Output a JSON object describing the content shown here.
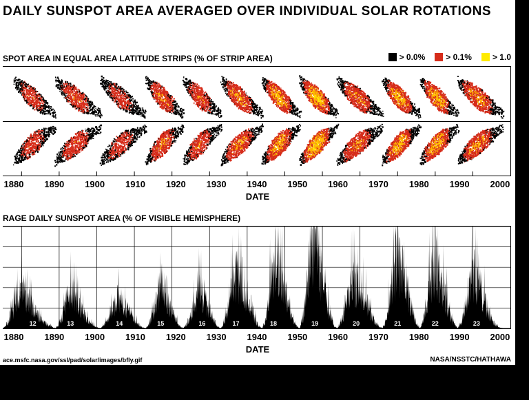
{
  "title": "DAILY SUNSPOT AREA AVERAGED OVER INDIVIDUAL SOLAR ROTATIONS",
  "title_fontsize": 19,
  "subtitle_top": "SPOT AREA IN EQUAL AREA LATITUDE STRIPS (% OF STRIP AREA)",
  "subtitle_bot": "RAGE DAILY SUNSPOT AREA (% OF VISIBLE HEMISPHERE)",
  "subtitle_fontsize": 12,
  "xlabel": "DATE",
  "xlabel_fontsize": 13,
  "tick_fontsize": 13,
  "credit_left": "ace.msfc.nasa.gov/ssl/pad/solar/images/bfly.gif",
  "credit_right": "NASA/NSSTC/HATHAWA",
  "legend": {
    "fontsize": 12,
    "items": [
      {
        "color": "#000000",
        "label": "> 0.0%"
      },
      {
        "color": "#d62c1a",
        "label": "> 0.1%"
      },
      {
        "color": "#ffeb00",
        "label": "> 1.0"
      }
    ]
  },
  "background_color": "#ffffff",
  "page_background": "#000000",
  "grid_color": "#000000",
  "x_axis": {
    "min": 1875,
    "max": 2010,
    "ticks": [
      1880,
      1890,
      1900,
      1910,
      1920,
      1930,
      1940,
      1950,
      1960,
      1970,
      1980,
      1990,
      2000
    ]
  },
  "butterfly": {
    "type": "heatmap",
    "y_range_deg": [
      -40,
      40
    ],
    "colors": {
      "low": "#000000",
      "mid": "#d62c1a",
      "high": "#ffb300",
      "vhigh": "#ffeb00"
    },
    "cycles": [
      {
        "num": 12,
        "start": 1878,
        "end": 1889,
        "amp": 0.55
      },
      {
        "num": 13,
        "start": 1889,
        "end": 1901,
        "amp": 0.6
      },
      {
        "num": 14,
        "start": 1901,
        "end": 1913,
        "amp": 0.5
      },
      {
        "num": 15,
        "start": 1913,
        "end": 1923,
        "amp": 0.68
      },
      {
        "num": 16,
        "start": 1923,
        "end": 1933,
        "amp": 0.62
      },
      {
        "num": 17,
        "start": 1933,
        "end": 1944,
        "amp": 0.75
      },
      {
        "num": 18,
        "start": 1944,
        "end": 1954,
        "amp": 0.88
      },
      {
        "num": 19,
        "start": 1954,
        "end": 1964,
        "amp": 1.0
      },
      {
        "num": 20,
        "start": 1964,
        "end": 1976,
        "amp": 0.7
      },
      {
        "num": 21,
        "start": 1976,
        "end": 1986,
        "amp": 0.9
      },
      {
        "num": 22,
        "start": 1986,
        "end": 1996,
        "amp": 0.88
      },
      {
        "num": 23,
        "start": 1996,
        "end": 2008,
        "amp": 0.78
      }
    ]
  },
  "area_chart": {
    "type": "area",
    "fill_color": "#000000",
    "ylim": [
      0,
      0.45
    ],
    "grid_y_lines": 5,
    "cycle_label_color": "#ffffff",
    "cycles": [
      {
        "num": 12,
        "peak_year": 1883,
        "end": 1889,
        "envelope": [
          0,
          0.02,
          0.07,
          0.13,
          0.16,
          0.13,
          0.1,
          0.07,
          0.04,
          0.02,
          0.01,
          0
        ]
      },
      {
        "num": 13,
        "peak_year": 1893,
        "end": 1901,
        "envelope": [
          0,
          0.02,
          0.06,
          0.12,
          0.17,
          0.15,
          0.11,
          0.08,
          0.05,
          0.03,
          0.015,
          0.005,
          0
        ]
      },
      {
        "num": 14,
        "peak_year": 1906,
        "end": 1913,
        "envelope": [
          0,
          0.015,
          0.04,
          0.08,
          0.11,
          0.12,
          0.11,
          0.09,
          0.06,
          0.04,
          0.02,
          0.005,
          0
        ]
      },
      {
        "num": 15,
        "peak_year": 1917,
        "end": 1923,
        "envelope": [
          0,
          0.02,
          0.07,
          0.14,
          0.19,
          0.16,
          0.12,
          0.08,
          0.04,
          0.01,
          0
        ]
      },
      {
        "num": 16,
        "peak_year": 1928,
        "end": 1933,
        "envelope": [
          0,
          0.02,
          0.06,
          0.12,
          0.16,
          0.15,
          0.12,
          0.08,
          0.04,
          0.01,
          0
        ]
      },
      {
        "num": 17,
        "peak_year": 1937,
        "end": 1944,
        "envelope": [
          0,
          0.03,
          0.1,
          0.19,
          0.24,
          0.22,
          0.17,
          0.12,
          0.08,
          0.04,
          0.01,
          0
        ]
      },
      {
        "num": 18,
        "peak_year": 1947,
        "end": 1954,
        "envelope": [
          0,
          0.04,
          0.14,
          0.25,
          0.31,
          0.28,
          0.21,
          0.15,
          0.09,
          0.04,
          0.01,
          0
        ]
      },
      {
        "num": 19,
        "peak_year": 1958,
        "end": 1964,
        "envelope": [
          0,
          0.05,
          0.18,
          0.32,
          0.4,
          0.36,
          0.28,
          0.19,
          0.11,
          0.05,
          0.01,
          0
        ]
      },
      {
        "num": 20,
        "peak_year": 1969,
        "end": 1976,
        "envelope": [
          0,
          0.03,
          0.09,
          0.16,
          0.2,
          0.19,
          0.17,
          0.14,
          0.1,
          0.06,
          0.03,
          0.01,
          0
        ]
      },
      {
        "num": 21,
        "peak_year": 1980,
        "end": 1986,
        "envelope": [
          0,
          0.04,
          0.14,
          0.24,
          0.29,
          0.26,
          0.2,
          0.13,
          0.07,
          0.02,
          0
        ]
      },
      {
        "num": 22,
        "peak_year": 1990,
        "end": 1996,
        "envelope": [
          0,
          0.04,
          0.14,
          0.24,
          0.29,
          0.25,
          0.19,
          0.12,
          0.06,
          0.02,
          0
        ]
      },
      {
        "num": 23,
        "peak_year": 2001,
        "end": 2008,
        "envelope": [
          0,
          0.03,
          0.1,
          0.18,
          0.23,
          0.22,
          0.18,
          0.13,
          0.08,
          0.04,
          0.015,
          0.005,
          0
        ]
      }
    ]
  }
}
